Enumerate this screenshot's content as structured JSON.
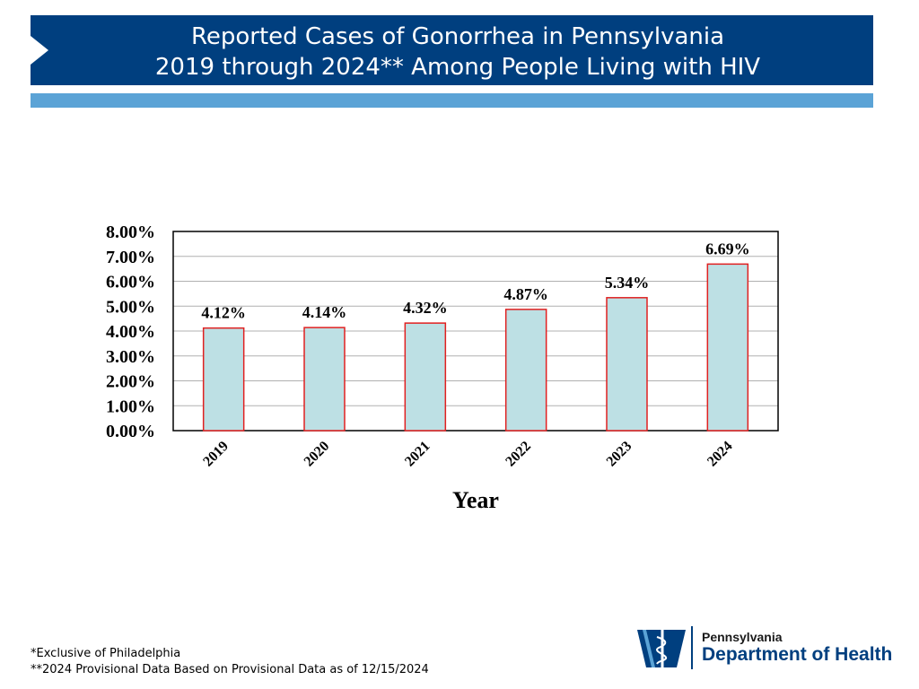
{
  "header": {
    "title_line1": "Reported Cases of Gonorrhea in Pennsylvania",
    "title_line2": "2019 through 2024** Among People Living with HIV"
  },
  "colors": {
    "banner": "#003f7f",
    "accent": "#5ba3d6",
    "bar_fill": "#bde0e4",
    "bar_stroke": "#e02020"
  },
  "chart_data": {
    "type": "bar",
    "title": "",
    "categories": [
      "2019",
      "2020",
      "2021",
      "2022",
      "2023",
      "2024"
    ],
    "values": [
      4.12,
      4.14,
      4.32,
      4.87,
      5.34,
      6.69
    ],
    "value_labels": [
      "4.12%",
      "4.14%",
      "4.32%",
      "4.87%",
      "5.34%",
      "6.69%"
    ],
    "xlabel": "Year",
    "ylabel": "",
    "ylim": [
      0,
      8
    ],
    "yticks": [
      "0.00%",
      "1.00%",
      "2.00%",
      "3.00%",
      "4.00%",
      "5.00%",
      "6.00%",
      "7.00%",
      "8.00%"
    ],
    "grid": true,
    "legend": "none"
  },
  "footnotes": {
    "line1": "*Exclusive of Philadelphia",
    "line2": "**2024 Provisional Data Based on Provisional Data as of 12/15/2024"
  },
  "logo": {
    "line1": "Pennsylvania",
    "line2": "Department of Health",
    "icon": "keystone-caduceus-icon"
  }
}
